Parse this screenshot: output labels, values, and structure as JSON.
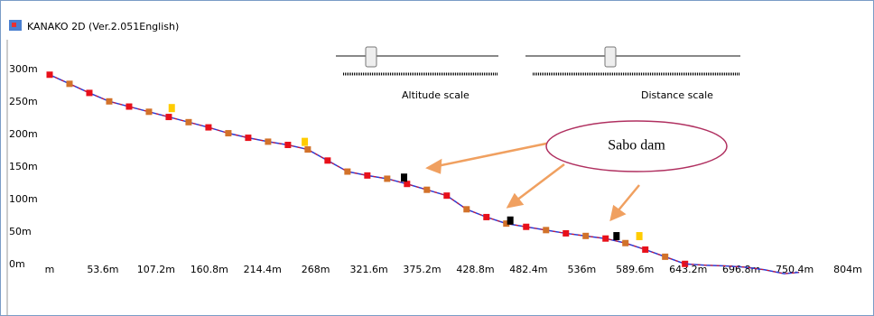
{
  "window_title": "KANAKO 2D (Ver.2.051English)",
  "sliders": [
    {
      "label": "Altitude scale"
    },
    {
      "label": "Distance scale"
    }
  ],
  "annotation": "Sabo dam",
  "chart_data": {
    "type": "line",
    "xlim": [
      0,
      804
    ],
    "ylim": [
      0,
      300
    ],
    "xticks": [
      {
        "value": 0,
        "label": "m"
      },
      {
        "value": 53.6,
        "label": "53.6m"
      },
      {
        "value": 107.2,
        "label": "107.2m"
      },
      {
        "value": 160.8,
        "label": "160.8m"
      },
      {
        "value": 214.4,
        "label": "214.4m"
      },
      {
        "value": 268,
        "label": "268m"
      },
      {
        "value": 321.6,
        "label": "321.6m"
      },
      {
        "value": 375.2,
        "label": "375.2m"
      },
      {
        "value": 428.8,
        "label": "428.8m"
      },
      {
        "value": 482.4,
        "label": "482.4m"
      },
      {
        "value": 536,
        "label": "536m"
      },
      {
        "value": 589.6,
        "label": "589.6m"
      },
      {
        "value": 643.2,
        "label": "643.2m"
      },
      {
        "value": 696.8,
        "label": "696.8m"
      },
      {
        "value": 750.4,
        "label": "750.4m"
      },
      {
        "value": 804,
        "label": "804m"
      }
    ],
    "yticks": [
      {
        "value": 0,
        "label": "0m"
      },
      {
        "value": 50,
        "label": "50m"
      },
      {
        "value": 100,
        "label": "100m"
      },
      {
        "value": 150,
        "label": "150m"
      },
      {
        "value": 200,
        "label": "200m"
      },
      {
        "value": 250,
        "label": "250m"
      },
      {
        "value": 300,
        "label": "300m"
      }
    ],
    "series": [
      {
        "color": "#2a3bd6",
        "marker_colors": [
          "#e8101a",
          "#d2722a"
        ],
        "x": [
          0,
          20,
          40,
          60,
          80,
          100,
          120,
          140,
          160,
          180,
          200,
          220,
          240,
          260,
          280,
          300,
          320,
          340,
          360,
          380,
          400,
          420,
          440,
          460,
          480,
          500,
          520,
          540,
          560,
          580,
          600,
          620,
          640
        ],
        "values": [
          292,
          278,
          264,
          251,
          243,
          235,
          227,
          219,
          211,
          202,
          195,
          189,
          184,
          177,
          160,
          143,
          137,
          132,
          124,
          115,
          106,
          85,
          73,
          63,
          58,
          53,
          48,
          44,
          40,
          33,
          23,
          12,
          1
        ]
      },
      {
        "color": "#2a3bd6",
        "x": [
          640,
          660,
          680,
          700,
          720,
          740,
          755
        ],
        "values": [
          1,
          -1,
          -2,
          -4,
          -8,
          -14,
          -12
        ]
      }
    ],
    "markers": [
      {
        "color": "#ffcc00",
        "x": [
          123,
          257,
          594
        ],
        "values": [
          240,
          188,
          43
        ]
      },
      {
        "color": "#000000",
        "x": [
          357,
          464,
          571
        ],
        "values": [
          133,
          67,
          43
        ]
      }
    ]
  }
}
